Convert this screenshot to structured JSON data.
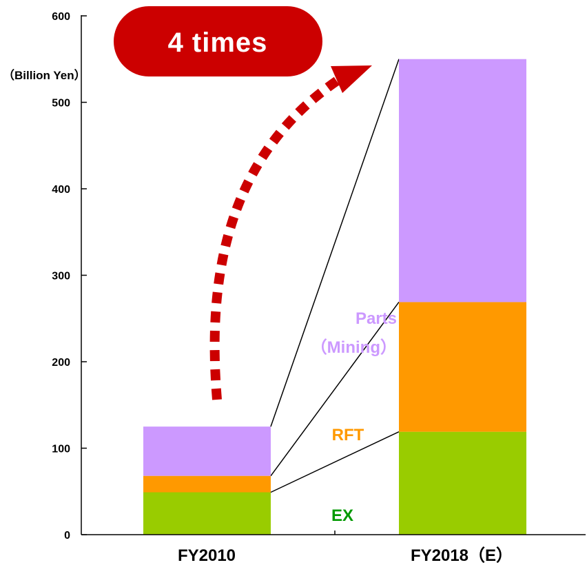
{
  "chart_data": {
    "type": "bar",
    "stacked": true,
    "unit_label": "（Billion Yen）",
    "categories": [
      "FY2010",
      "FY2018（E）"
    ],
    "ylim": [
      0,
      600
    ],
    "yticks": [
      0,
      100,
      200,
      300,
      400,
      500,
      600
    ],
    "series": [
      {
        "name": "EX",
        "label_color": "#009900",
        "color": "#99cc00",
        "values": [
          49,
          119
        ]
      },
      {
        "name": "RFT",
        "label_color": "#ff9900",
        "color": "#ff9900",
        "values": [
          19,
          150
        ]
      },
      {
        "name": "Parts\n（Mining）",
        "label_color": "#cc99ff",
        "color": "#cc99ff",
        "values": [
          57,
          281
        ]
      }
    ],
    "series_labels": {
      "ex": "EX",
      "rft": "RFT",
      "parts_line1": "Parts",
      "parts_line2": "（Mining）"
    },
    "annotation": {
      "text": "4 times",
      "color": "#cc0000"
    }
  }
}
